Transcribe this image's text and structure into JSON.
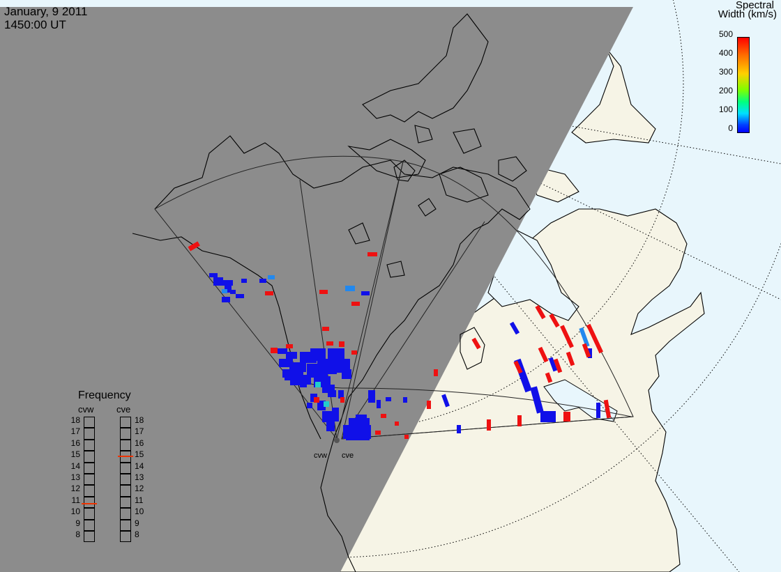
{
  "header": {
    "date": "January, 9 2011",
    "time": "1450:00 UT"
  },
  "colorbar": {
    "title_line1": "Spectral",
    "title_line2": "Width (km/s)",
    "ticks": [
      "500",
      "400",
      "300",
      "200",
      "100",
      "0"
    ],
    "colors": [
      "#ff0000",
      "#ff8c00",
      "#ffff00",
      "#00ff00",
      "#00e0ff",
      "#0000ff"
    ]
  },
  "frequency": {
    "title": "Frequency",
    "radar_labels": [
      "cvw",
      "cve"
    ],
    "levels": [
      "18",
      "17",
      "16",
      "15",
      "14",
      "13",
      "12",
      "11",
      "10",
      "9",
      "8"
    ],
    "cvw_value": 10.9,
    "cve_value": 15.0
  },
  "radars": {
    "west_label": "cvw",
    "east_label": "cve"
  },
  "map_colors": {
    "night": "#8c8c8c",
    "land_day": "#f6f4e6",
    "ocean_day": "#e8f6fc",
    "coast": "#000000",
    "scatter_low": "#1010e8",
    "scatter_mid": "#2288ee",
    "scatter_cyan": "#22cccc",
    "scatter_high": "#ee1111"
  }
}
